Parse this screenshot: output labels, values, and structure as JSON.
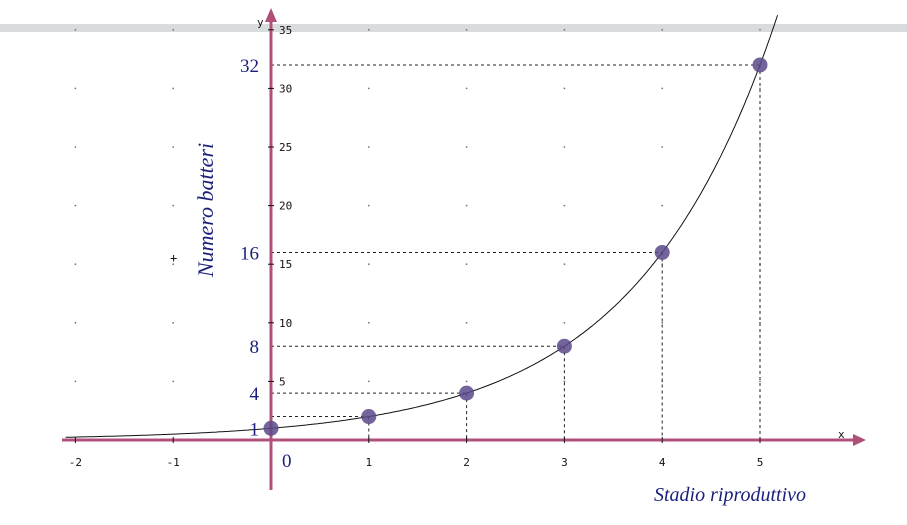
{
  "chart_data": {
    "type": "scatter",
    "title": "",
    "xlabel": "Stadio riproduttivo",
    "ylabel": "Numero batteri",
    "x_axis_letter": "x",
    "y_axis_letter": "y",
    "xlim": [
      -2.1,
      5.9
    ],
    "ylim": [
      -4,
      36
    ],
    "x_ticks": [
      "-2",
      "-1",
      "1",
      "2",
      "3",
      "4",
      "5"
    ],
    "y_ticks": [
      "5",
      "10",
      "15",
      "20",
      "25",
      "30",
      "35"
    ],
    "y_tick_values": [
      5,
      10,
      15,
      20,
      25,
      30,
      35
    ],
    "x_tick_values": [
      -2,
      -1,
      1,
      2,
      3,
      4,
      5
    ],
    "origin_label": "0",
    "series": [
      {
        "x": [
          0,
          1,
          2,
          3,
          4,
          5
        ],
        "y": [
          1,
          2,
          4,
          8,
          16,
          32
        ]
      }
    ],
    "highlight_y_labels": [
      "1",
      "4",
      "8",
      "16",
      "32"
    ],
    "highlight_y_values": [
      1,
      4,
      8,
      16,
      32
    ],
    "curve": "y = 2^x",
    "point_color": "#5a4a8a",
    "axis_color": "#b0507a",
    "label_color": "#1a1f7a"
  }
}
